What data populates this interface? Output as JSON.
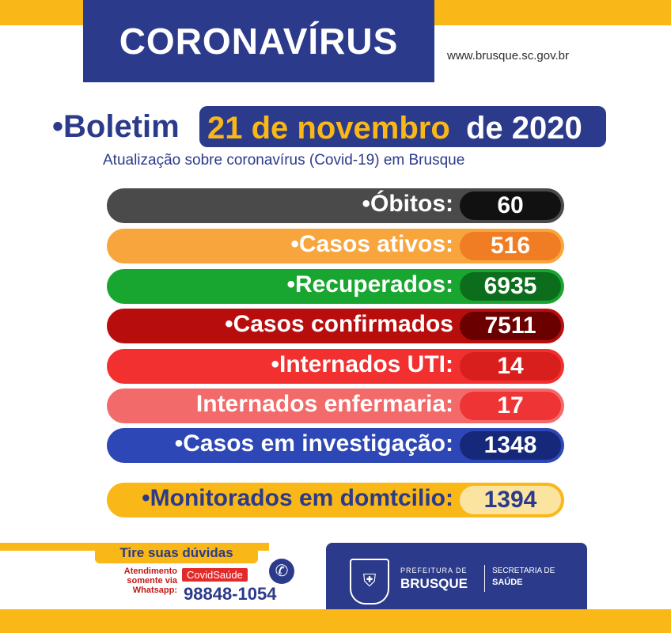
{
  "header": {
    "title": "CORONAVÍRUS",
    "site": "www.brusque.sc.gov.br"
  },
  "bulletin": {
    "label": "•Boletim",
    "date_highlight": "21 de novembro",
    "date_rest": "de 2020",
    "subtitle": "Atualização sobre coronavírus (Covid-19) em Brusque"
  },
  "stats": [
    {
      "label": "•Óbitos:",
      "value": "60",
      "bar_color": "#4a4a4a",
      "value_color": "#111111"
    },
    {
      "label": "•Casos ativos:",
      "value": "516",
      "bar_color": "#f7a53c",
      "value_color": "#f07d24"
    },
    {
      "label": "•Recuperados:",
      "value": "6935",
      "bar_color": "#19a630",
      "value_color": "#0c6e1c"
    },
    {
      "label": "•Casos confirmados",
      "value": "7511",
      "bar_color": "#b80d0d",
      "value_color": "#6b0000"
    },
    {
      "label": "•Internados UTI:",
      "value": "14",
      "bar_color": "#f23030",
      "value_color": "#d91e1e"
    },
    {
      "label": "Internados enfermaria:",
      "value": "17",
      "bar_color": "#f26a6a",
      "value_color": "#ee3434"
    },
    {
      "label": "•Casos em investigação:",
      "value": "1348",
      "bar_color": "#2d47b6",
      "value_color": "#16287a"
    }
  ],
  "monitored": {
    "label": "•Monitorados em domtcilio:",
    "value": "1394",
    "bar_color": "#f9b817",
    "value_color": "#fbe3a0"
  },
  "contact": {
    "heading": "Tire suas dúvidas",
    "line1": "Atendimento",
    "line2": "somente via",
    "line3": "Whatsapp:",
    "tag": "CovidSaúde",
    "phone": "98848-1054",
    "icon": "whatsapp-icon"
  },
  "logo": {
    "pref_small": "PREFEITURA DE",
    "pref_big": "BRUSQUE",
    "sec_line1": "SECRETARIA DE",
    "sec_line2": "SAÚDE",
    "icon": "crest-icon"
  }
}
